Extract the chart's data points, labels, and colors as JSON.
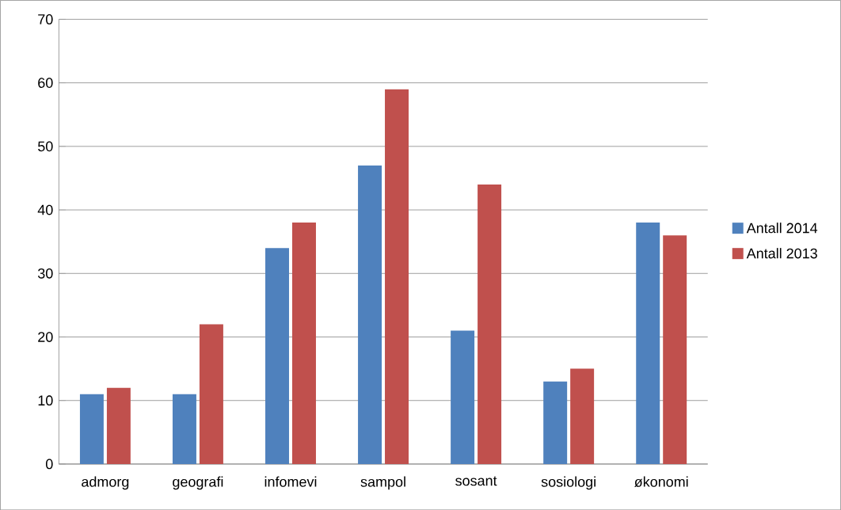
{
  "chart_data": {
    "type": "bar",
    "categories": [
      "admorg",
      "geografi",
      "infomevi",
      "sampol",
      "sosant",
      "sosiologi",
      "økonomi"
    ],
    "series": [
      {
        "name": "Antall 2014",
        "color": "#4f81bd",
        "values": [
          11,
          11,
          34,
          47,
          21,
          13,
          38
        ]
      },
      {
        "name": "Antall 2013",
        "color": "#c0504d",
        "values": [
          12,
          22,
          38,
          59,
          44,
          15,
          36
        ]
      }
    ],
    "ylim": [
      0,
      70
    ],
    "yticks": [
      0,
      10,
      20,
      30,
      40,
      50,
      60,
      70
    ],
    "grid": "y",
    "legend": "right"
  }
}
